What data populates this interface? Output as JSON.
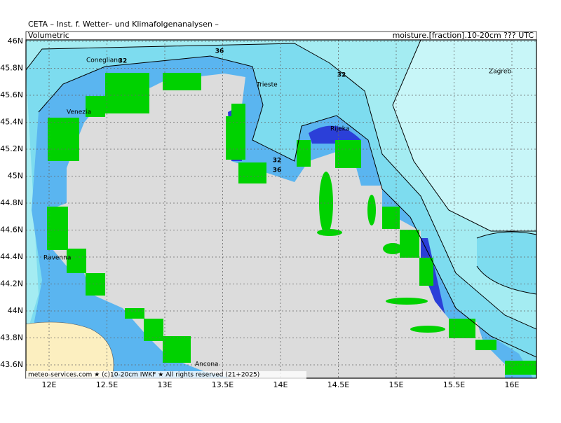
{
  "header": {
    "title": "CETA – Inst. f. Wetter– und Klimafolgenanalysen –",
    "left": "Volumetric",
    "right": "moisture.[fraction].10-20cm ??? UTC"
  },
  "axes": {
    "lat_labels": [
      "46N",
      "45.8N",
      "45.6N",
      "45.4N",
      "45.2N",
      "45N",
      "44.8N",
      "44.6N",
      "44.4N",
      "44.2N",
      "44N",
      "43.8N",
      "43.6N"
    ],
    "lon_labels": [
      "12E",
      "12.5E",
      "13E",
      "13.5E",
      "14E",
      "14.5E",
      "15E",
      "15.5E",
      "16E"
    ]
  },
  "places": [
    "Conegliano",
    "Venezia",
    "Trieste",
    "Rijeka",
    "Zagreb",
    "Ravenna",
    "Ancona"
  ],
  "contour_labels": [
    "32",
    "36",
    "32",
    "32",
    "36"
  ],
  "footer": "meteo-services.com ★ (c)10-20cm IWKF ★ All rights reserved (21+2025)"
}
